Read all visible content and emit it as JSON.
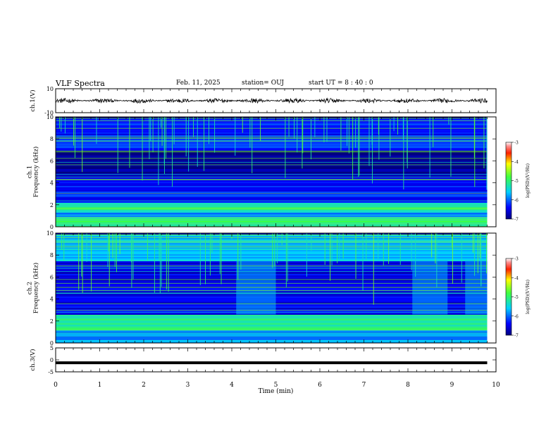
{
  "header": {
    "title": "VLF Spectra",
    "date": "Feb. 11, 2025",
    "station": "station= OUJ",
    "start": "start  UT =  8 : 40 : 0"
  },
  "chart_data": [
    {
      "type": "line",
      "panel": "ch.1 waveform",
      "ylabel": "ch.1(V)",
      "ylim": [
        -10,
        10
      ],
      "yticks": [
        10,
        -10
      ],
      "xlim": [
        0,
        10
      ],
      "series": [
        {
          "values_note_range": [
            -2,
            2
          ],
          "x_range": [
            0,
            9.8
          ],
          "mean": 0
        }
      ]
    },
    {
      "type": "heatmap",
      "panel": "ch.1 spectrogram",
      "ylabel": "ch.1\nFrequency (kHz)",
      "ylim": [
        0,
        10
      ],
      "yticks": [
        0,
        2,
        4,
        6,
        8,
        10
      ],
      "xlim": [
        0,
        10
      ],
      "data_x_range": [
        0,
        9.8
      ],
      "colorbar": {
        "label": "log(PSD)(V²/Hz)",
        "range": [
          -7,
          -3
        ],
        "ticks": [
          -3,
          -4,
          -5,
          -6,
          -7
        ]
      },
      "bands": [
        {
          "freq_range": [
            0,
            0.8
          ],
          "level": -5.0
        },
        {
          "freq_range": [
            0.8,
            1.3
          ],
          "level": -5.8
        },
        {
          "freq_range": [
            1.3,
            2.3
          ],
          "level": -5.2
        },
        {
          "freq_range": [
            2.3,
            4.5
          ],
          "level": -6.3
        },
        {
          "freq_range": [
            4.5,
            7.0
          ],
          "level": -6.9
        },
        {
          "freq_range": [
            7.0,
            10.0
          ],
          "level": -6.3
        }
      ]
    },
    {
      "type": "heatmap",
      "panel": "ch.2 spectrogram",
      "ylabel": "ch.2\nFrequency (kHz)",
      "ylim": [
        0,
        10
      ],
      "yticks": [
        0,
        2,
        4,
        6,
        8,
        10
      ],
      "xlim": [
        0,
        10
      ],
      "data_x_range": [
        0,
        9.8
      ],
      "colorbar": {
        "label": "log(PSD)(V²/Hz)",
        "range": [
          -7,
          -3
        ],
        "ticks": [
          -3,
          -4,
          -5,
          -6,
          -7
        ]
      },
      "bands": [
        {
          "freq_range": [
            0,
            1.2
          ],
          "level": -5.8
        },
        {
          "freq_range": [
            1.2,
            2.6
          ],
          "level": -5.1
        },
        {
          "freq_range": [
            2.6,
            7.5
          ],
          "level": -6.5
        },
        {
          "freq_range": [
            7.5,
            10.0
          ],
          "level": -5.6
        }
      ],
      "bright_intervals_min": [
        [
          4.1,
          5.0
        ],
        [
          8.1,
          8.9
        ],
        [
          9.3,
          9.8
        ]
      ]
    },
    {
      "type": "line",
      "panel": "ch.3 waveform",
      "ylabel": "ch.3(V)",
      "ylim": [
        -5,
        5
      ],
      "yticks": [
        5,
        0,
        -5
      ],
      "xlim": [
        0,
        10
      ],
      "series": [
        {
          "constant": -1.2,
          "x_range": [
            0,
            9.8
          ]
        }
      ]
    }
  ],
  "xaxis": {
    "label": "Time (min)",
    "ticks": [
      "0",
      "1",
      "2",
      "3",
      "4",
      "5",
      "6",
      "7",
      "8",
      "9",
      "10"
    ]
  }
}
